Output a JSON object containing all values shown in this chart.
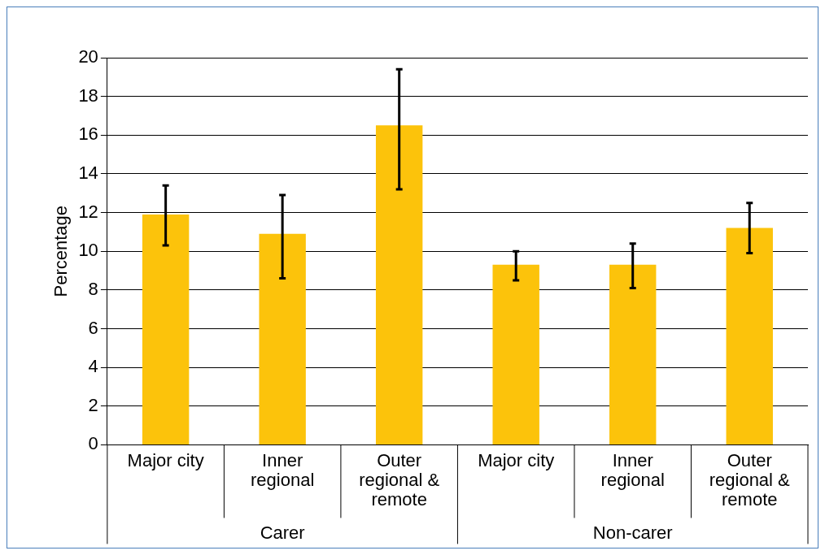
{
  "chart_data": {
    "type": "bar",
    "ylabel": "Percentage",
    "categories": [
      "Major city",
      "Inner regional",
      "Outer regional & remote",
      "Major city",
      "Inner regional",
      "Outer regional & remote"
    ],
    "values": [
      11.9,
      10.9,
      16.5,
      9.3,
      9.3,
      11.2
    ],
    "errors": [
      [
        10.3,
        13.4
      ],
      [
        8.6,
        12.9
      ],
      [
        13.2,
        19.4
      ],
      [
        8.5,
        10.0
      ],
      [
        8.1,
        10.4
      ],
      [
        9.9,
        12.5
      ]
    ],
    "color": "#fcc30b",
    "ylim": [
      0,
      20
    ],
    "yticks": [
      0,
      2,
      4,
      6,
      8,
      10,
      12,
      14,
      16,
      18,
      20
    ],
    "grid": "y",
    "legend": false,
    "annotations": [
      "Carer",
      "Non-carer"
    ]
  }
}
